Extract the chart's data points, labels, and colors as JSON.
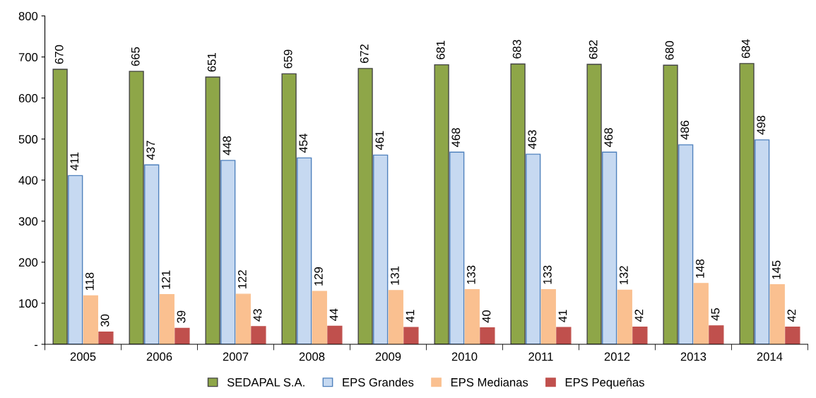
{
  "chart_data": {
    "type": "bar",
    "categories": [
      "2005",
      "2006",
      "2007",
      "2008",
      "2009",
      "2010",
      "2011",
      "2012",
      "2013",
      "2014"
    ],
    "series": [
      {
        "name": "SEDAPAL S.A.",
        "color": "#8ea648",
        "values": [
          670,
          665,
          651,
          659,
          672,
          681,
          683,
          682,
          680,
          684
        ]
      },
      {
        "name": "EPS Grandes",
        "color": "#c6d9f1",
        "values": [
          411,
          437,
          448,
          454,
          461,
          468,
          463,
          468,
          486,
          498
        ]
      },
      {
        "name": "EPS Medianas",
        "color": "#fac090",
        "values": [
          118,
          121,
          122,
          129,
          131,
          133,
          133,
          132,
          148,
          145
        ]
      },
      {
        "name": "EPS Pequeñas",
        "color": "#c0504d",
        "values": [
          30,
          39,
          43,
          44,
          41,
          40,
          41,
          42,
          45,
          42
        ]
      }
    ],
    "ylim": [
      0,
      800
    ],
    "yticks": [
      {
        "value": 0,
        "label": "-"
      },
      100,
      200,
      300,
      400,
      500,
      600,
      700,
      800
    ],
    "data_labels": true,
    "legend": "bottom",
    "grid": false
  }
}
